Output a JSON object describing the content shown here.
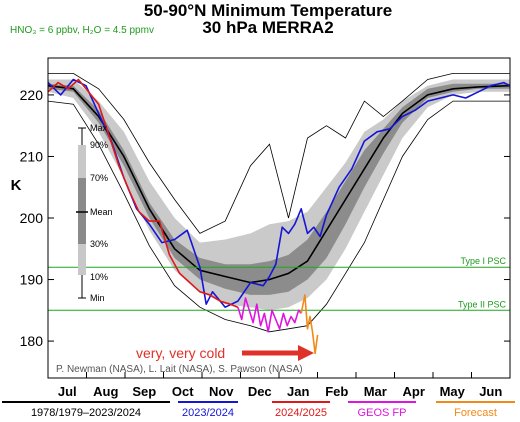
{
  "chart_data": {
    "type": "line",
    "title": "50-90°N Minimum Temperature",
    "subtitle": "30 hPa   MERRA2",
    "conditions": "HNO₃ = 6 ppbv, H₂O = 4.5 ppmv",
    "ylabel": "K",
    "ylim": [
      174,
      226
    ],
    "yticks": [
      180,
      190,
      200,
      210,
      220
    ],
    "xlim": [
      0,
      365
    ],
    "months": [
      "Jul",
      "Aug",
      "Sep",
      "Oct",
      "Nov",
      "Dec",
      "Jan",
      "Feb",
      "Mar",
      "Apr",
      "May",
      "Jun"
    ],
    "thresholds": [
      {
        "label": "Type I PSC",
        "value": 192
      },
      {
        "label": "Type II PSC",
        "value": 185
      }
    ],
    "legend_labels": {
      "max": "Max",
      "p90": "90%",
      "p70": "70%",
      "mean": "Mean",
      "p30": "30%",
      "p10": "10%",
      "min": "Min"
    },
    "climatology": {
      "x": [
        0,
        20,
        40,
        60,
        80,
        100,
        120,
        140,
        160,
        175,
        190,
        205,
        220,
        235,
        250,
        265,
        280,
        300,
        320,
        340,
        365
      ],
      "max": [
        223.5,
        223.5,
        221,
        216,
        209,
        203,
        197.5,
        199.5,
        208.5,
        212,
        200,
        213,
        215,
        213,
        219,
        216.5,
        219,
        222.5,
        223.5,
        223.5,
        223.5
      ],
      "p90": [
        222.5,
        222.5,
        219,
        214,
        206,
        200,
        196,
        196.5,
        197.5,
        199,
        199.5,
        201,
        205,
        209,
        214,
        216,
        219,
        221.5,
        222.5,
        222.5,
        222.5
      ],
      "p70": [
        221.8,
        221.5,
        217.5,
        211,
        202.5,
        196.5,
        193.5,
        192.5,
        192.5,
        193,
        194,
        196.5,
        201,
        206,
        211,
        214.5,
        218,
        221,
        221.8,
        221.8,
        221.8
      ],
      "mean": [
        221.5,
        221,
        216.5,
        210,
        201.5,
        195,
        191.5,
        190.5,
        189.5,
        190,
        191,
        193,
        198,
        203,
        208,
        213,
        217,
        220,
        221,
        221.3,
        221.5
      ],
      "p30": [
        221,
        220.5,
        215.5,
        208.5,
        200,
        193.5,
        190,
        188.5,
        187.5,
        187.5,
        188,
        190,
        193.5,
        199,
        205,
        210.5,
        215.5,
        219.5,
        220.5,
        221,
        221
      ],
      "p10": [
        220.5,
        219.5,
        214,
        206.5,
        198,
        191.5,
        188,
        186,
        185.5,
        185,
        185.5,
        187,
        190,
        195,
        201,
        207,
        213,
        218,
        220,
        220.5,
        220.5
      ],
      "min": [
        219,
        218.5,
        212,
        204,
        195.5,
        189,
        185.5,
        183.5,
        182.5,
        181.5,
        182,
        182.5,
        186,
        191,
        196,
        203,
        210,
        216,
        219,
        219,
        219
      ]
    },
    "series": [
      {
        "name": "2023/2024",
        "color": "#1515d8",
        "x": [
          0,
          10,
          20,
          30,
          40,
          50,
          60,
          70,
          80,
          90,
          100,
          110,
          120,
          125,
          130,
          140,
          150,
          160,
          170,
          175,
          180,
          185,
          190,
          195,
          200,
          205,
          210,
          215,
          220,
          230,
          240,
          250,
          260,
          270,
          280,
          290,
          300,
          310,
          320,
          330,
          340,
          350,
          360,
          365
        ],
        "y": [
          222,
          220,
          222.5,
          221.5,
          217,
          212.5,
          206.5,
          201.5,
          199,
          196,
          196.5,
          198,
          192,
          186,
          188,
          185.5,
          186.5,
          189.5,
          189,
          190.5,
          192.5,
          198.5,
          197.5,
          199,
          201.5,
          197.5,
          198.5,
          197,
          200.5,
          205,
          208,
          212.5,
          214,
          214.5,
          216.5,
          217.5,
          219,
          219.5,
          220,
          219.5,
          220.5,
          221.5,
          222,
          221.5
        ]
      },
      {
        "name": "2024/2025",
        "color": "#e01818",
        "x": [
          0,
          8,
          16,
          24,
          32,
          40,
          48,
          56,
          64,
          72,
          80,
          88,
          96,
          104,
          112,
          120,
          128,
          136,
          144,
          150
        ],
        "y": [
          220.5,
          222,
          221,
          222.5,
          220.5,
          218.5,
          213.5,
          208.5,
          204.5,
          201,
          199.5,
          199.5,
          194,
          191,
          189.5,
          188,
          187.5,
          186.5,
          186,
          185.5
        ]
      },
      {
        "name": "GEOS FP",
        "color": "#e014e0",
        "x": [
          150,
          153,
          156,
          159,
          162,
          165,
          168,
          171,
          174,
          177,
          180,
          183,
          186,
          189,
          192,
          195,
          198,
          200
        ],
        "y": [
          185.5,
          183.5,
          187,
          185,
          183,
          186,
          182.5,
          184.5,
          181.5,
          185,
          183.5,
          182,
          184.5,
          182.5,
          184,
          183,
          185,
          184.5
        ]
      },
      {
        "name": "Forecast",
        "color": "#f08a1a",
        "x": [
          200,
          203,
          205,
          207,
          209,
          211,
          213
        ],
        "y": [
          184.5,
          187.5,
          182,
          184,
          181.5,
          178,
          181
        ]
      }
    ],
    "annotation": {
      "text": "very, very cold",
      "color": "#e0302a"
    },
    "credit": "P. Newman (NASA), L. Lait (NASA), S. Pawson (NASA)",
    "footer_legend": [
      {
        "label": "1978/1979–2023/2024",
        "color": "#000000"
      },
      {
        "label": "2023/2024",
        "color": "#1515d8"
      },
      {
        "label": "2024/2025",
        "color": "#e01818"
      },
      {
        "label": "GEOS FP",
        "color": "#e014e0"
      },
      {
        "label": "Forecast",
        "color": "#f08a1a"
      }
    ]
  }
}
